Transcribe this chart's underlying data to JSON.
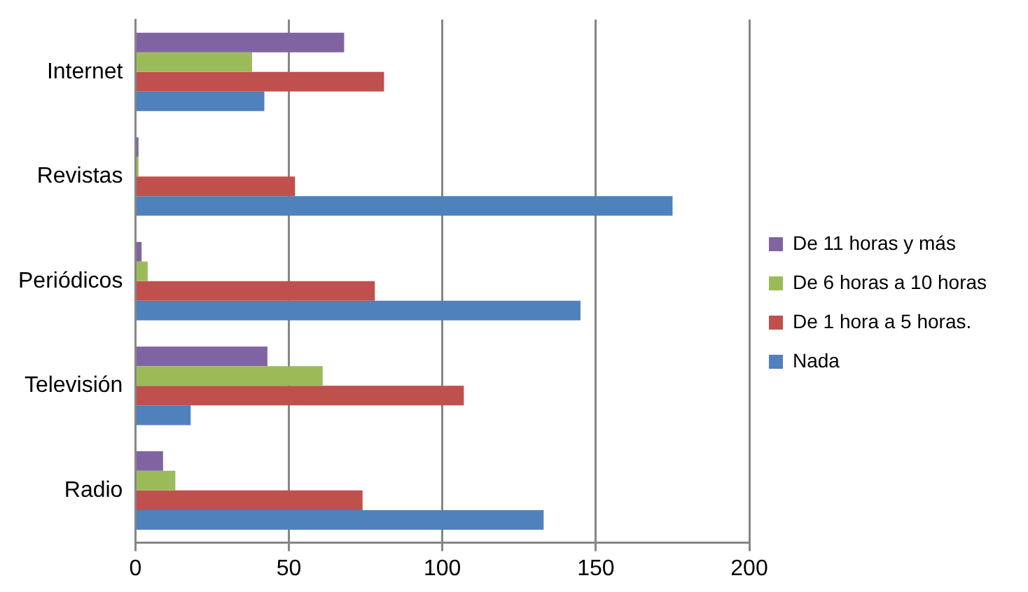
{
  "chart_data": {
    "type": "bar",
    "orientation": "horizontal",
    "categories": [
      "Internet",
      "Revistas",
      "Periódicos",
      "Televisión",
      "Radio"
    ],
    "series": [
      {
        "name": "De 11 horas y más",
        "color": "#8064a2",
        "values": [
          68,
          1,
          2,
          43,
          9
        ]
      },
      {
        "name": "De 6 horas a 10 horas",
        "color": "#9bbb59",
        "values": [
          38,
          1,
          4,
          61,
          13
        ]
      },
      {
        "name": "De 1 hora a 5 horas.",
        "color": "#c0504d",
        "values": [
          81,
          52,
          78,
          107,
          74
        ]
      },
      {
        "name": "Nada",
        "color": "#4f81bd",
        "values": [
          42,
          175,
          145,
          18,
          133
        ]
      }
    ],
    "xlim": [
      0,
      200
    ],
    "xticks": [
      0,
      50,
      100,
      150,
      200
    ],
    "grid": "x",
    "legend": "right"
  }
}
